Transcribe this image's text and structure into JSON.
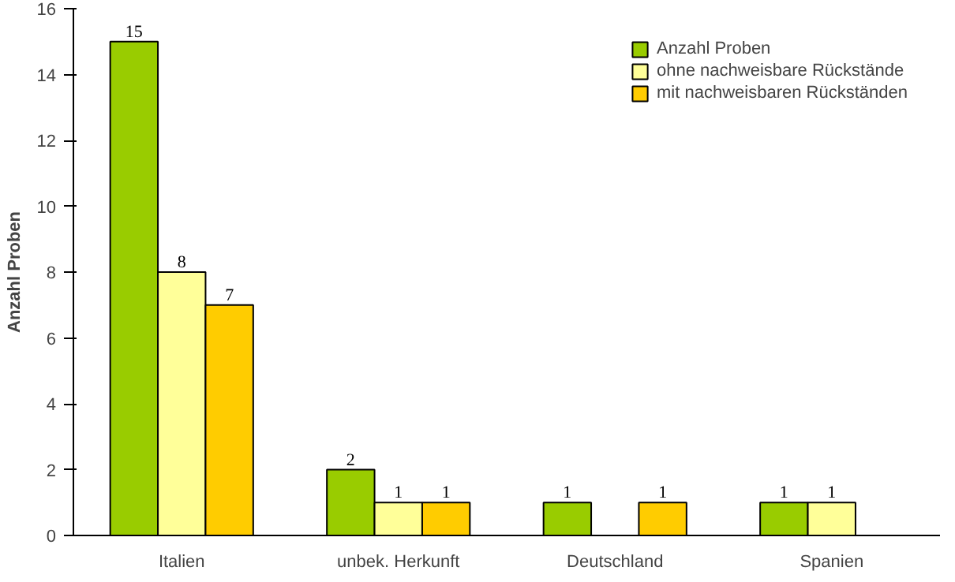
{
  "chart_data": {
    "type": "bar",
    "ylabel": "Anzahl Proben",
    "categories": [
      "Italien",
      "unbek. Herkunft",
      "Deutschland",
      "Spanien"
    ],
    "series": [
      {
        "name": "Anzahl Proben",
        "color": "#99cc00",
        "values": [
          15,
          2,
          1,
          1
        ]
      },
      {
        "name": "ohne nachweisbare Rückstände",
        "color": "#ffff99",
        "values": [
          8,
          1,
          null,
          1
        ]
      },
      {
        "name": "mit nachweisbaren Rückständen",
        "color": "#ffcc00",
        "values": [
          7,
          1,
          1,
          null
        ]
      }
    ],
    "ylim": [
      0,
      16
    ],
    "yticks": [
      0,
      2,
      4,
      6,
      8,
      10,
      12,
      14,
      16
    ],
    "grid": false,
    "legend": "top right",
    "data_labels": true
  }
}
